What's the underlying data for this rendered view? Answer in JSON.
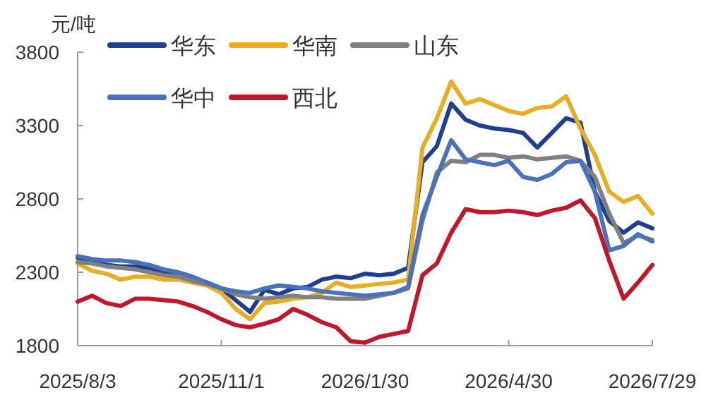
{
  "chart_data": {
    "type": "line",
    "ylabel": "元/吨",
    "legend": "top left",
    "grid": false,
    "marker": "none",
    "line_style": "solid",
    "x": [
      "2025-08-03",
      "2025-08-12",
      "2025-08-21",
      "2025-08-30",
      "2025-09-08",
      "2025-09-17",
      "2025-09-26",
      "2025-10-05",
      "2025-10-14",
      "2025-10-23",
      "2025-11-01",
      "2025-11-10",
      "2025-11-19",
      "2025-11-28",
      "2025-12-07",
      "2025-12-16",
      "2025-12-25",
      "2026-01-03",
      "2026-01-12",
      "2026-01-21",
      "2026-01-30",
      "2026-02-08",
      "2026-02-17",
      "2026-02-26",
      "2026-03-07",
      "2026-03-16",
      "2026-03-25",
      "2026-04-03",
      "2026-04-12",
      "2026-04-21",
      "2026-04-30",
      "2026-05-09",
      "2026-05-18",
      "2026-05-27",
      "2026-06-05",
      "2026-06-14",
      "2026-06-23",
      "2026-07-02",
      "2026-07-11",
      "2026-07-20",
      "2026-07-29"
    ],
    "xlim": [
      "2025-08-03",
      "2026-07-29"
    ],
    "xticks": [
      {
        "value": "2025-08-03",
        "label": "2025/8/3"
      },
      {
        "value": "2025-11-01",
        "label": "2025/11/1"
      },
      {
        "value": "2026-01-30",
        "label": "2026/1/30"
      },
      {
        "value": "2026-04-30",
        "label": "2026/4/30"
      },
      {
        "value": "2026-07-29",
        "label": "2026/7/29"
      }
    ],
    "ylim": [
      1800,
      3800
    ],
    "yticks": [
      1800,
      2300,
      2800,
      3300,
      3800
    ],
    "series": [
      {
        "name": "华东",
        "color": "#1f3f8f",
        "values": [
          2400,
          2380,
          2350,
          2340,
          2340,
          2330,
          2300,
          2290,
          2260,
          2230,
          2190,
          2110,
          2030,
          2180,
          2150,
          2190,
          2200,
          2250,
          2270,
          2260,
          2290,
          2280,
          2290,
          2330,
          3050,
          3160,
          3450,
          3340,
          3300,
          3280,
          3270,
          3250,
          3150,
          3250,
          3350,
          3320,
          2850,
          2650,
          2570,
          2640,
          2600
        ]
      },
      {
        "name": "华南",
        "color": "#e8ac25",
        "values": [
          2360,
          2310,
          2290,
          2250,
          2270,
          2270,
          2250,
          2250,
          2230,
          2210,
          2160,
          2050,
          1980,
          2090,
          2100,
          2120,
          2130,
          2160,
          2230,
          2200,
          2210,
          2220,
          2230,
          2250,
          3150,
          3350,
          3600,
          3450,
          3480,
          3440,
          3400,
          3380,
          3420,
          3430,
          3500,
          3280,
          3100,
          2850,
          2780,
          2820,
          2700
        ]
      },
      {
        "name": "山东",
        "color": "#808080",
        "values": [
          2370,
          2360,
          2340,
          2330,
          2320,
          2300,
          2280,
          2270,
          2240,
          2220,
          2190,
          2150,
          2130,
          2120,
          2130,
          2140,
          2130,
          2130,
          2120,
          2120,
          2120,
          2140,
          2160,
          2190,
          2650,
          2980,
          3060,
          3050,
          3100,
          3100,
          3080,
          3090,
          3070,
          3080,
          3090,
          3060,
          2950,
          2700,
          2500,
          2550,
          2520
        ]
      },
      {
        "name": "华中",
        "color": "#4a72b8",
        "values": [
          2410,
          2390,
          2380,
          2380,
          2370,
          2350,
          2320,
          2300,
          2270,
          2230,
          2190,
          2170,
          2160,
          2190,
          2210,
          2200,
          2190,
          2170,
          2160,
          2150,
          2140,
          2150,
          2160,
          2200,
          2690,
          2950,
          3200,
          3070,
          3050,
          3030,
          3060,
          2950,
          2930,
          2970,
          3050,
          3060,
          2850,
          2450,
          2480,
          2560,
          2510
        ]
      },
      {
        "name": "西北",
        "color": "#c0182a",
        "values": [
          2100,
          2140,
          2090,
          2070,
          2120,
          2120,
          2110,
          2100,
          2070,
          2030,
          1980,
          1940,
          1925,
          1950,
          1980,
          2050,
          2010,
          1960,
          1925,
          1830,
          1820,
          1860,
          1880,
          1900,
          2280,
          2360,
          2570,
          2730,
          2710,
          2710,
          2720,
          2710,
          2690,
          2720,
          2740,
          2790,
          2670,
          2380,
          2120,
          2230,
          2350
        ]
      }
    ]
  }
}
